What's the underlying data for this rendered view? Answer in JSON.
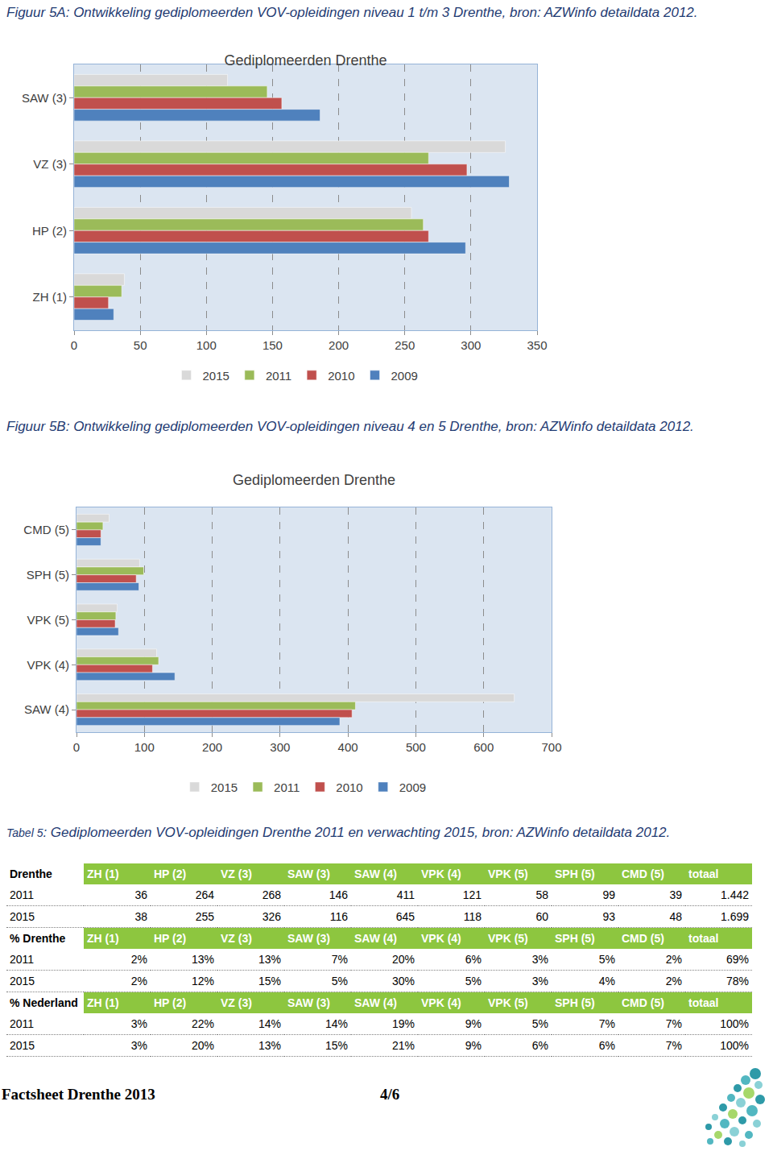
{
  "chart_data": [
    {
      "type": "bar",
      "orientation": "horizontal",
      "title": "Gediplomeerden Drenthe",
      "categories": [
        "SAW (3)",
        "VZ (3)",
        "HP (2)",
        "ZH (1)"
      ],
      "series": [
        {
          "name": "2015",
          "color": "#d9d9d9",
          "values": [
            116,
            326,
            255,
            38
          ]
        },
        {
          "name": "2011",
          "color": "#9bbb59",
          "values": [
            146,
            268,
            264,
            36
          ]
        },
        {
          "name": "2010",
          "color": "#c0504d",
          "values": [
            157,
            297,
            268,
            26
          ]
        },
        {
          "name": "2009",
          "color": "#4f81bd",
          "values": [
            186,
            329,
            296,
            30
          ]
        }
      ],
      "xlim": [
        0,
        350
      ],
      "xticks": [
        0,
        50,
        100,
        150,
        200,
        250,
        300,
        350
      ],
      "grid": true,
      "legend": "bottom"
    },
    {
      "type": "bar",
      "orientation": "horizontal",
      "title": "Gediplomeerden Drenthe",
      "categories": [
        "CMD (5)",
        "SPH (5)",
        "VPK (5)",
        "VPK (4)",
        "SAW (4)"
      ],
      "series": [
        {
          "name": "2015",
          "color": "#d9d9d9",
          "values": [
            48,
            93,
            60,
            118,
            645
          ]
        },
        {
          "name": "2011",
          "color": "#9bbb59",
          "values": [
            39,
            99,
            58,
            121,
            411
          ]
        },
        {
          "name": "2010",
          "color": "#c0504d",
          "values": [
            36,
            88,
            57,
            112,
            406
          ]
        },
        {
          "name": "2009",
          "color": "#4f81bd",
          "values": [
            36,
            92,
            62,
            145,
            388
          ]
        }
      ],
      "xlim": [
        0,
        700
      ],
      "xticks": [
        0,
        100,
        200,
        300,
        400,
        500,
        600,
        700
      ],
      "grid": true,
      "legend": "bottom"
    }
  ],
  "document": {
    "figure_captions": [
      "Figuur 5A: Ontwikkeling gediplomeerden VOV-opleidingen niveau 1 t/m 3 Drenthe, bron: AZWinfo detaildata 2012.",
      "Figuur 5B: Ontwikkeling gediplomeerden VOV-opleidingen niveau 4 en 5 Drenthe, bron: AZWinfo detaildata 2012."
    ],
    "table": {
      "caption_prefix": "Tabel 5",
      "caption": ": Gediplomeerden VOV-opleidingen Drenthe 2011 en verwachting 2015, bron: AZWinfo detaildata 2012.",
      "sections": [
        {
          "header": [
            "Drenthe",
            "ZH (1)",
            "HP (2)",
            "VZ (3)",
            "SAW (3)",
            "SAW (4)",
            "VPK (4)",
            "VPK (5)",
            "SPH (5)",
            "CMD (5)",
            "totaal"
          ],
          "rows": [
            [
              "2011",
              "36",
              "264",
              "268",
              "146",
              "411",
              "121",
              "58",
              "99",
              "39",
              "1.442"
            ],
            [
              "2015",
              "38",
              "255",
              "326",
              "116",
              "645",
              "118",
              "60",
              "93",
              "48",
              "1.699"
            ]
          ]
        },
        {
          "header": [
            "% Drenthe",
            "ZH (1)",
            "HP (2)",
            "VZ (3)",
            "SAW (3)",
            "SAW (4)",
            "VPK (4)",
            "VPK (5)",
            "SPH (5)",
            "CMD (5)",
            "totaal"
          ],
          "rows": [
            [
              "2011",
              "2%",
              "13%",
              "13%",
              "7%",
              "20%",
              "6%",
              "3%",
              "5%",
              "2%",
              "69%"
            ],
            [
              "2015",
              "2%",
              "12%",
              "15%",
              "5%",
              "30%",
              "5%",
              "3%",
              "4%",
              "2%",
              "78%"
            ]
          ]
        },
        {
          "header": [
            "% Nederland",
            "ZH (1)",
            "HP (2)",
            "VZ (3)",
            "SAW (3)",
            "SAW (4)",
            "VPK (4)",
            "VPK (5)",
            "SPH (5)",
            "CMD (5)",
            "totaal"
          ],
          "rows": [
            [
              "2011",
              "3%",
              "22%",
              "14%",
              "14%",
              "19%",
              "9%",
              "5%",
              "7%",
              "7%",
              "100%"
            ],
            [
              "2015",
              "3%",
              "20%",
              "13%",
              "15%",
              "21%",
              "9%",
              "6%",
              "6%",
              "7%",
              "100%"
            ]
          ]
        }
      ]
    },
    "footer": {
      "left": "Factsheet Drenthe 2013",
      "page": "4/6"
    }
  }
}
